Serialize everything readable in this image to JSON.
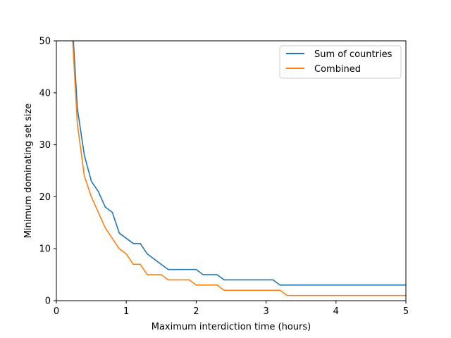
{
  "chart_data": {
    "type": "line",
    "title": "",
    "xlabel": "Maximum interdiction time (hours)",
    "ylabel": "Minimum dominating set size",
    "xlim": [
      0,
      5
    ],
    "ylim": [
      0,
      50
    ],
    "xticks": [
      0,
      1,
      2,
      3,
      4,
      5
    ],
    "yticks": [
      0,
      10,
      20,
      30,
      40,
      50
    ],
    "xtick_labels": [
      "0",
      "1",
      "2",
      "3",
      "4",
      "5"
    ],
    "ytick_labels": [
      "0",
      "10",
      "20",
      "30",
      "40",
      "50"
    ],
    "grid": false,
    "legend_position": "top-right",
    "series": [
      {
        "name": "Sum of countries",
        "color": "#1f77b4",
        "x": [
          0.2,
          0.3,
          0.4,
          0.5,
          0.6,
          0.7,
          0.8,
          0.9,
          1.0,
          1.1,
          1.2,
          1.3,
          1.4,
          1.5,
          1.6,
          1.7,
          1.8,
          1.9,
          2.0,
          2.1,
          2.2,
          2.3,
          2.4,
          2.5,
          2.6,
          2.7,
          2.8,
          2.9,
          3.0,
          3.1,
          3.2,
          3.3,
          3.4,
          3.5,
          3.6,
          3.7,
          3.8,
          3.9,
          4.0,
          4.1,
          4.2,
          4.3,
          4.4,
          4.5,
          4.6,
          4.7,
          4.8,
          4.9,
          5.0
        ],
        "y": [
          60,
          37,
          28,
          23,
          21,
          18,
          17,
          13,
          12,
          11,
          11,
          9,
          8,
          7,
          6,
          6,
          6,
          6,
          6,
          5,
          5,
          5,
          4,
          4,
          4,
          4,
          4,
          4,
          4,
          4,
          3,
          3,
          3,
          3,
          3,
          3,
          3,
          3,
          3,
          3,
          3,
          3,
          3,
          3,
          3,
          3,
          3,
          3,
          3
        ]
      },
      {
        "name": "Combined",
        "color": "#ff7f0e",
        "x": [
          0.2,
          0.3,
          0.4,
          0.5,
          0.6,
          0.7,
          0.8,
          0.9,
          1.0,
          1.1,
          1.2,
          1.3,
          1.4,
          1.5,
          1.6,
          1.7,
          1.8,
          1.9,
          2.0,
          2.1,
          2.2,
          2.3,
          2.4,
          2.5,
          2.6,
          2.7,
          2.8,
          2.9,
          3.0,
          3.1,
          3.2,
          3.3,
          3.4,
          3.5,
          3.6,
          3.7,
          3.8,
          3.9,
          4.0,
          4.1,
          4.2,
          4.3,
          4.4,
          4.5,
          4.6,
          4.7,
          4.8,
          4.9,
          5.0
        ],
        "y": [
          58,
          34,
          24,
          20,
          17,
          14,
          12,
          10,
          9,
          7,
          7,
          5,
          5,
          5,
          4,
          4,
          4,
          4,
          3,
          3,
          3,
          3,
          2,
          2,
          2,
          2,
          2,
          2,
          2,
          2,
          2,
          1,
          1,
          1,
          1,
          1,
          1,
          1,
          1,
          1,
          1,
          1,
          1,
          1,
          1,
          1,
          1,
          1,
          1
        ]
      }
    ]
  }
}
